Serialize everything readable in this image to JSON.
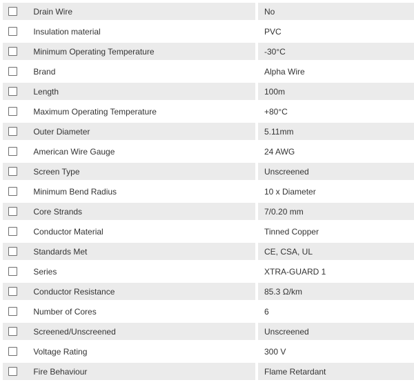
{
  "table": {
    "stripe_color": "#ebebeb",
    "text_color": "#333333",
    "rows": [
      {
        "label": "Drain Wire",
        "value": "No",
        "checked": false
      },
      {
        "label": "Insulation material",
        "value": "PVC",
        "checked": false
      },
      {
        "label": "Minimum Operating Temperature",
        "value": "-30°C",
        "checked": false
      },
      {
        "label": "Brand",
        "value": "Alpha Wire",
        "checked": false
      },
      {
        "label": "Length",
        "value": "100m",
        "checked": false
      },
      {
        "label": "Maximum Operating Temperature",
        "value": "+80°C",
        "checked": false
      },
      {
        "label": "Outer Diameter",
        "value": "5.11mm",
        "checked": false
      },
      {
        "label": "American Wire Gauge",
        "value": "24 AWG",
        "checked": false
      },
      {
        "label": "Screen Type",
        "value": "Unscreened",
        "checked": false
      },
      {
        "label": "Minimum Bend Radius",
        "value": "10 x Diameter",
        "checked": false
      },
      {
        "label": "Core Strands",
        "value": "7/0.20 mm",
        "checked": false
      },
      {
        "label": "Conductor Material",
        "value": "Tinned Copper",
        "checked": false
      },
      {
        "label": "Standards Met",
        "value": "CE, CSA, UL",
        "checked": false
      },
      {
        "label": "Series",
        "value": "XTRA-GUARD 1",
        "checked": false
      },
      {
        "label": "Conductor Resistance",
        "value": "85.3 Ω/km",
        "checked": false
      },
      {
        "label": "Number of Cores",
        "value": "6",
        "checked": false
      },
      {
        "label": "Screened/Unscreened",
        "value": "Unscreened",
        "checked": false
      },
      {
        "label": "Voltage Rating",
        "value": "300 V",
        "checked": false
      },
      {
        "label": "Fire Behaviour",
        "value": "Flame Retardant",
        "checked": false
      }
    ]
  }
}
